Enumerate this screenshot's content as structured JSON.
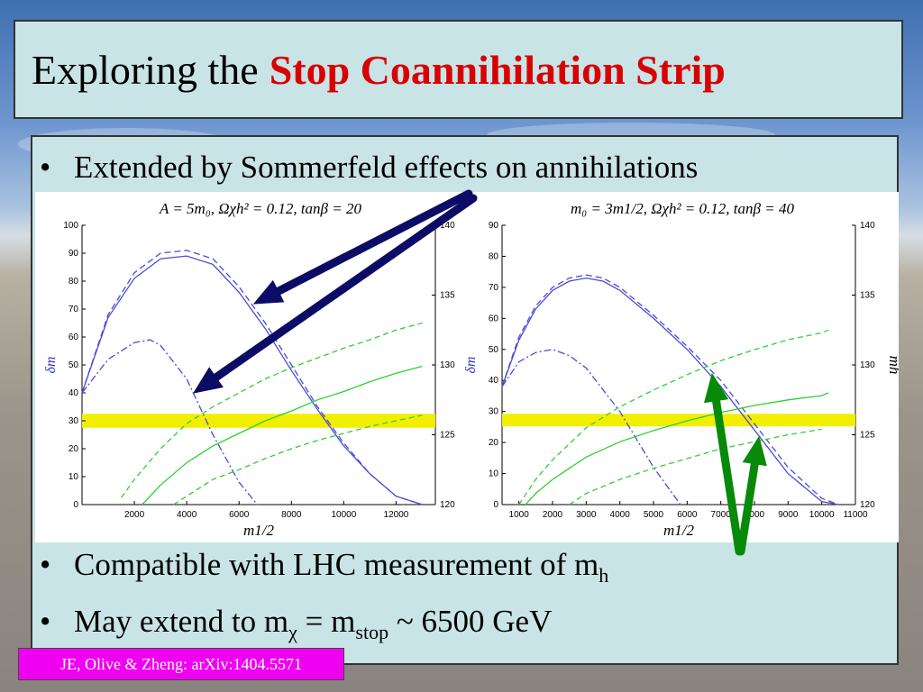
{
  "title": {
    "prefix": "Exploring the",
    "highlight": "Stop Coannihilation Strip"
  },
  "bullets": [
    {
      "text": "Extended by Sommerfeld effects on annihilations"
    },
    {
      "text": "Compatible with LHC measurement of m",
      "sub": "h"
    },
    {
      "pre": "May extend to m",
      "sub1": "χ",
      "mid": " = m",
      "sub2": "stop",
      "post": " ~ 6500 GeV"
    }
  ],
  "citation": "JE, Olive & Zheng: arXiv:1404.5571",
  "colors": {
    "blue": "#4b4bd6",
    "green": "#2ed12e",
    "yellow": "#f2ee00",
    "arrow_blue": "#0c0c66",
    "arrow_green": "#078a07"
  },
  "chart_data": [
    {
      "type": "line",
      "title": "A = 5m₀, Ωχh² = 0.12, tanβ = 20",
      "xlabel": "m1/2",
      "ylabel": "δm",
      "xlim": [
        0,
        13500
      ],
      "ylim": [
        0,
        100
      ],
      "y2lim": [
        120,
        140
      ],
      "xticks": [
        "2000",
        "4000",
        "6000",
        "8000",
        "10000",
        "12000"
      ],
      "yticks": [
        "0",
        "10",
        "20",
        "30",
        "40",
        "50",
        "60",
        "70",
        "80",
        "90",
        "100"
      ],
      "y2ticks": [
        "120",
        "125",
        "130",
        "135",
        "140"
      ],
      "band_y2": [
        125.5,
        126.5
      ],
      "series": [
        {
          "style": "blue-solid",
          "x": [
            0,
            1000,
            2000,
            3000,
            4000,
            5000,
            6000,
            7000,
            8000,
            9000,
            10000,
            11000,
            12000,
            13000
          ],
          "y": [
            40,
            67,
            81,
            88,
            89,
            86,
            76,
            63,
            48,
            34,
            21,
            11,
            3,
            0
          ]
        },
        {
          "style": "blue-dashed",
          "x": [
            0,
            1000,
            2000,
            3000,
            4000,
            5000,
            6000,
            7000,
            8000,
            9000,
            10000,
            11000,
            12000,
            13000
          ],
          "y": [
            40,
            68,
            83,
            90,
            91,
            88,
            78,
            65,
            50,
            35,
            22,
            11,
            3,
            0
          ]
        },
        {
          "style": "blue-dashdot",
          "x": [
            0,
            1000,
            2000,
            2600,
            3000,
            4000,
            5000,
            6000,
            6700
          ],
          "y": [
            40,
            52,
            58,
            59,
            57,
            45,
            25,
            8,
            0
          ]
        },
        {
          "style": "green-solid",
          "x": [
            2300,
            3000,
            4000,
            5000,
            6000,
            7000,
            8000,
            9000,
            10000,
            11000,
            12000,
            13000
          ],
          "y2": [
            120,
            121.4,
            123,
            124.2,
            125.1,
            126,
            126.7,
            127.5,
            128.1,
            128.8,
            129.4,
            129.9
          ]
        },
        {
          "style": "green-dashed-upper",
          "x": [
            1500,
            2000,
            3000,
            4000,
            5000,
            6000,
            7000,
            8000,
            9000,
            10000,
            11000,
            12000,
            13000
          ],
          "y2": [
            120.5,
            121.8,
            124,
            125.8,
            127,
            128,
            129,
            129.8,
            130.5,
            131.2,
            131.8,
            132.5,
            133
          ]
        },
        {
          "style": "green-dashed-lower",
          "x": [
            3500,
            4000,
            5000,
            6000,
            7000,
            8000,
            9000,
            10000,
            11000,
            12000,
            13000
          ],
          "y2": [
            120,
            120.6,
            121.8,
            122.5,
            123.3,
            124,
            124.6,
            125.1,
            125.6,
            126,
            126.4
          ]
        }
      ]
    },
    {
      "type": "line",
      "title": "m₀ = 3m1/2, Ωχh² = 0.12, tanβ = 40",
      "xlabel": "m1/2",
      "ylabel": "δm",
      "y2label": "mh",
      "xlim": [
        500,
        11000
      ],
      "ylim": [
        0,
        90
      ],
      "y2lim": [
        120,
        140
      ],
      "xticks": [
        "1000",
        "2000",
        "3000",
        "4000",
        "5000",
        "6000",
        "7000",
        "8000",
        "9000",
        "10000",
        "11000"
      ],
      "yticks": [
        "0",
        "10",
        "20",
        "30",
        "40",
        "50",
        "60",
        "70",
        "80",
        "90"
      ],
      "y2ticks": [
        "120",
        "125",
        "130",
        "135",
        "140"
      ],
      "band_y2": [
        125.6,
        126.5
      ],
      "series": [
        {
          "style": "blue-solid",
          "x": [
            500,
            1000,
            1500,
            2000,
            2500,
            3000,
            3500,
            4000,
            5000,
            6000,
            7000,
            8000,
            9000,
            10000,
            10500
          ],
          "y": [
            38,
            53,
            63,
            69,
            72,
            73,
            72,
            69,
            60,
            50,
            38,
            24,
            10,
            1,
            0
          ]
        },
        {
          "style": "blue-dashed",
          "x": [
            500,
            1000,
            1500,
            2000,
            2500,
            3000,
            3500,
            4000,
            5000,
            6000,
            7000,
            8000,
            9000,
            10000,
            10500
          ],
          "y": [
            38,
            54,
            64,
            70,
            73,
            74,
            73,
            70,
            61,
            51,
            40,
            26,
            12,
            2,
            0
          ]
        },
        {
          "style": "blue-dashdot",
          "x": [
            500,
            1000,
            1500,
            2000,
            2500,
            3000,
            4000,
            5000,
            5800
          ],
          "y": [
            38,
            46,
            49,
            50,
            48,
            44,
            30,
            12,
            0
          ]
        },
        {
          "style": "green-solid",
          "x": [
            1200,
            1500,
            2000,
            3000,
            4000,
            5000,
            6000,
            7000,
            8000,
            9000,
            10000,
            10200
          ],
          "y2": [
            120,
            120.8,
            121.8,
            123.4,
            124.5,
            125.3,
            126,
            126.6,
            127.1,
            127.5,
            127.8,
            128
          ]
        },
        {
          "style": "green-dashed-upper",
          "x": [
            1000,
            1500,
            2000,
            3000,
            4000,
            5000,
            6000,
            7000,
            8000,
            9000,
            10000,
            10200
          ],
          "y2": [
            120,
            121.8,
            123.2,
            125.5,
            127,
            128.2,
            129.3,
            130.3,
            131.1,
            131.8,
            132.3,
            132.5
          ]
        },
        {
          "style": "green-dashed-lower",
          "x": [
            2500,
            3000,
            4000,
            5000,
            6000,
            7000,
            8000,
            9000,
            10000
          ],
          "y2": [
            120,
            120.8,
            121.8,
            122.6,
            123.3,
            124,
            124.5,
            125,
            125.4
          ]
        }
      ]
    }
  ]
}
